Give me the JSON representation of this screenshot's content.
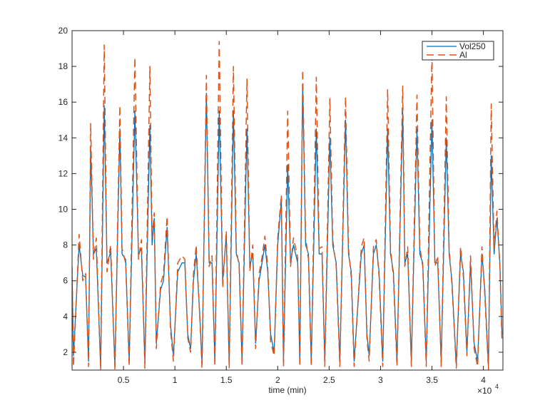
{
  "chart_data": {
    "type": "line",
    "title": "",
    "xlabel": "time (min)",
    "ylabel": "",
    "x_exponent_label": "×10",
    "x_exponent_power": "4",
    "xlim": [
      0,
      41900
    ],
    "ylim": [
      1,
      20
    ],
    "xticks": [
      5000,
      10000,
      15000,
      20000,
      25000,
      30000,
      35000,
      40000
    ],
    "xtick_labels": [
      "0.5",
      "1",
      "1.5",
      "2",
      "2.5",
      "3",
      "3.5",
      "4"
    ],
    "yticks": [
      2,
      4,
      6,
      8,
      10,
      12,
      14,
      16,
      18,
      20
    ],
    "ytick_labels": [
      "2",
      "4",
      "6",
      "8",
      "10",
      "12",
      "14",
      "16",
      "18",
      "20"
    ],
    "grid": false,
    "legend_position": "top-right",
    "x": [
      0,
      140,
      690,
      1040,
      1320,
      1600,
      1810,
      2080,
      2360,
      2780,
      3130,
      3400,
      3750,
      4170,
      4650,
      4860,
      5210,
      5560,
      6110,
      6460,
      6740,
      7080,
      7570,
      7780,
      7990,
      8190,
      8610,
      8890,
      9240,
      9580,
      9860,
      10280,
      10690,
      10970,
      11250,
      11530,
      11810,
      12080,
      12430,
      12640,
      13060,
      13330,
      13610,
      13890,
      14310,
      14650,
      15000,
      15280,
      15690,
      15970,
      16250,
      16530,
      17010,
      17290,
      17570,
      17850,
      18190,
      18470,
      18750,
      19030,
      19310,
      19650,
      20000,
      20350,
      20560,
      20970,
      21250,
      21530,
      21940,
      22150,
      22430,
      22710,
      22990,
      23260,
      23750,
      24030,
      24310,
      24580,
      25070,
      25350,
      25690,
      26040,
      26600,
      26880,
      27150,
      27430,
      28130,
      28400,
      28680,
      28890,
      29310,
      29580,
      29860,
      30210,
      30690,
      30970,
      31250,
      31600,
      32150,
      32360,
      32640,
      32990,
      33540,
      33820,
      34100,
      34440,
      35000,
      35280,
      35560,
      35900,
      36390,
      36670,
      36940,
      37360,
      37780,
      38060,
      38400,
      38750,
      39100,
      39440,
      39860,
      40140,
      40490,
      40760,
      41040,
      41320,
      41600,
      41810
    ],
    "series": [
      {
        "name": "Vol250",
        "color": "#0072BD",
        "style": "solid",
        "values": [
          6.5,
          1.8,
          8.0,
          6.3,
          6.2,
          1.5,
          13.5,
          7.5,
          7.8,
          1.1,
          15.8,
          7.0,
          7.6,
          1.2,
          14.5,
          7.5,
          7.2,
          1.5,
          15.5,
          7.5,
          7.8,
          1.4,
          14.7,
          8.0,
          9.5,
          2.5,
          5.5,
          6.0,
          9.0,
          3.5,
          1.8,
          6.5,
          7.0,
          7.0,
          3.0,
          2.2,
          6.0,
          7.5,
          4.0,
          1.3,
          16.5,
          7.0,
          7.0,
          1.5,
          15.5,
          6.0,
          8.5,
          1.3,
          15.5,
          7.5,
          7.0,
          1.5,
          14.5,
          6.8,
          7.5,
          2.5,
          6.0,
          7.0,
          8.0,
          6.5,
          3.0,
          2.0,
          8.0,
          10.5,
          1.5,
          12.5,
          7.0,
          8.0,
          7.0,
          1.5,
          17.0,
          8.0,
          7.5,
          1.5,
          14.5,
          7.5,
          7.5,
          1.5,
          14.0,
          8.0,
          7.0,
          1.5,
          15.0,
          7.5,
          6.5,
          1.5,
          7.5,
          8.0,
          3.0,
          1.8,
          7.5,
          8.0,
          6.5,
          1.5,
          14.5,
          7.5,
          6.5,
          1.5,
          15.5,
          7.0,
          7.5,
          1.5,
          14.5,
          7.5,
          7.0,
          1.5,
          15.0,
          7.0,
          7.0,
          1.5,
          14.0,
          7.5,
          6.0,
          1.3,
          7.5,
          6.5,
          2.0,
          7.0,
          2.5,
          1.5,
          7.5,
          5.5,
          1.2,
          13.0,
          7.5,
          9.5,
          7.0,
          3.0
        ]
      },
      {
        "name": "Al",
        "color": "#D95319",
        "style": "dashed",
        "values": [
          6.8,
          1.2,
          8.6,
          6.0,
          6.4,
          1.2,
          14.8,
          7.2,
          8.4,
          1.0,
          19.2,
          6.5,
          8.0,
          1.0,
          15.8,
          7.8,
          7.0,
          1.2,
          18.5,
          7.2,
          8.3,
          1.1,
          18.0,
          8.4,
          9.8,
          2.2,
          5.8,
          6.4,
          9.6,
          3.2,
          1.5,
          7.0,
          7.4,
          7.2,
          2.8,
          2.0,
          6.4,
          8.0,
          3.8,
          1.1,
          17.5,
          6.8,
          7.4,
          1.2,
          19.4,
          5.6,
          8.8,
          1.1,
          18.0,
          7.8,
          6.8,
          1.2,
          17.3,
          6.5,
          8.0,
          2.2,
          6.4,
          7.3,
          8.5,
          6.8,
          2.6,
          1.8,
          8.4,
          10.8,
          1.2,
          15.5,
          6.8,
          8.4,
          7.3,
          1.2,
          17.8,
          8.4,
          7.2,
          1.2,
          17.4,
          7.8,
          7.9,
          1.2,
          16.2,
          8.3,
          6.8,
          1.2,
          16.3,
          7.8,
          6.2,
          1.2,
          7.9,
          8.4,
          2.7,
          1.5,
          7.9,
          8.3,
          6.2,
          1.2,
          16.7,
          7.8,
          6.2,
          1.2,
          16.9,
          6.8,
          7.9,
          1.2,
          16.4,
          7.9,
          6.8,
          1.2,
          18.6,
          6.8,
          7.4,
          1.2,
          16.3,
          7.8,
          5.8,
          1.1,
          7.9,
          6.2,
          1.8,
          7.4,
          2.2,
          1.2,
          7.9,
          5.2,
          1.0,
          15.9,
          7.8,
          9.9,
          6.8,
          2.6
        ]
      }
    ]
  }
}
